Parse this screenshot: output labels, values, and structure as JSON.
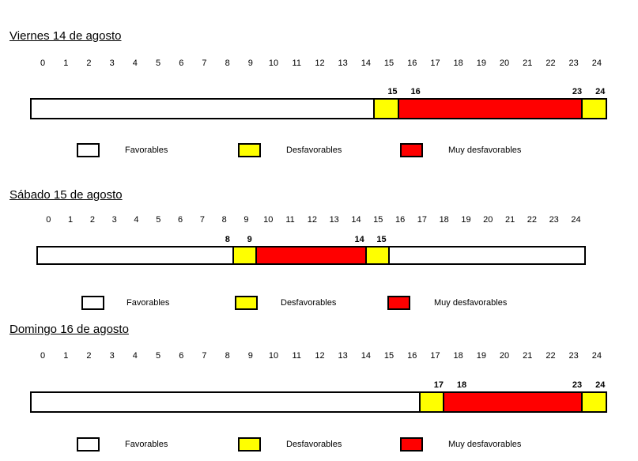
{
  "colors": {
    "favorable": "#ffffff",
    "desfavorable": "#ffff00",
    "muy_desfavorable": "#ff0000"
  },
  "legend": [
    "Favorables",
    "Desfavorables",
    "Muy desfavorables"
  ],
  "chart_data": [
    {
      "type": "timeline",
      "title": "Viernes 14 de agosto",
      "hour_ticks": [
        "0",
        "1",
        "2",
        "3",
        "4",
        "5",
        "6",
        "7",
        "8",
        "9",
        "10",
        "11",
        "12",
        "13",
        "14",
        "15",
        "16",
        "17",
        "18",
        "19",
        "20",
        "21",
        "22",
        "23",
        "24"
      ],
      "segments": [
        {
          "start": 0,
          "end": 15,
          "category": "favorable"
        },
        {
          "start": 15,
          "end": 16,
          "category": "desfavorable"
        },
        {
          "start": 16,
          "end": 24,
          "category": "muy_desfavorable"
        },
        {
          "start": 24,
          "end": 25,
          "category": "desfavorable"
        }
      ],
      "boundary_labels": [
        {
          "text": "15",
          "at": 15
        },
        {
          "text": "16",
          "at": 16
        },
        {
          "text": "23",
          "at": 23
        },
        {
          "text": "24",
          "at": 24
        }
      ]
    },
    {
      "type": "timeline",
      "title": "Sábado 15 de agosto",
      "hour_ticks": [
        "0",
        "1",
        "2",
        "3",
        "4",
        "5",
        "6",
        "7",
        "8",
        "9",
        "10",
        "11",
        "12",
        "13",
        "14",
        "15",
        "16",
        "17",
        "18",
        "19",
        "20",
        "21",
        "22",
        "23",
        "24"
      ],
      "segments": [
        {
          "start": 0,
          "end": 9,
          "category": "favorable"
        },
        {
          "start": 9,
          "end": 10,
          "category": "desfavorable"
        },
        {
          "start": 10,
          "end": 15,
          "category": "muy_desfavorable"
        },
        {
          "start": 15,
          "end": 16,
          "category": "desfavorable"
        },
        {
          "start": 16,
          "end": 25,
          "category": "favorable"
        }
      ],
      "boundary_labels": [
        {
          "text": "8",
          "at": 8
        },
        {
          "text": "9",
          "at": 9
        },
        {
          "text": "14",
          "at": 14
        },
        {
          "text": "15",
          "at": 15
        }
      ]
    },
    {
      "type": "timeline",
      "title": "Domingo 16 de agosto",
      "hour_ticks": [
        "0",
        "1",
        "2",
        "3",
        "4",
        "5",
        "6",
        "7",
        "8",
        "9",
        "10",
        "11",
        "12",
        "13",
        "14",
        "15",
        "16",
        "17",
        "18",
        "19",
        "20",
        "21",
        "22",
        "23",
        "24"
      ],
      "segments": [
        {
          "start": 0,
          "end": 17,
          "category": "favorable"
        },
        {
          "start": 17,
          "end": 18,
          "category": "desfavorable"
        },
        {
          "start": 18,
          "end": 24,
          "category": "muy_desfavorable"
        },
        {
          "start": 24,
          "end": 25,
          "category": "desfavorable"
        }
      ],
      "boundary_labels": [
        {
          "text": "17",
          "at": 17
        },
        {
          "text": "18",
          "at": 18
        },
        {
          "text": "23",
          "at": 23
        },
        {
          "text": "24",
          "at": 24
        }
      ]
    }
  ]
}
